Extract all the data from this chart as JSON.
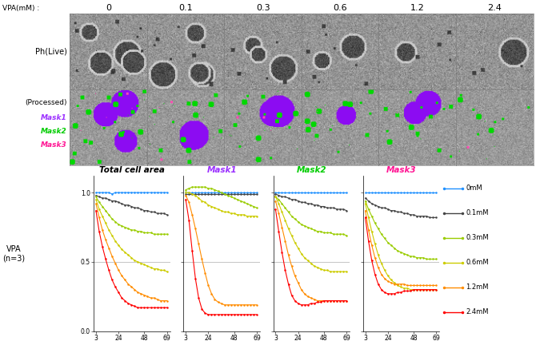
{
  "vpa_labels": [
    "0",
    "0.1",
    "0.3",
    "0.6",
    "1.2",
    "2.4"
  ],
  "graph_titles": [
    "Total cell area",
    "Mask1",
    "Mask2",
    "Mask3"
  ],
  "graph_title_colors": [
    "#000000",
    "#9b30ff",
    "#00cc00",
    "#ff1493"
  ],
  "x_ticks": [
    3,
    24,
    48,
    69
  ],
  "x_values": [
    3,
    6,
    9,
    12,
    15,
    18,
    21,
    24,
    27,
    30,
    33,
    36,
    39,
    42,
    45,
    48,
    51,
    54,
    57,
    60,
    63,
    66,
    69
  ],
  "series_colors": [
    "#1e90ff",
    "#444444",
    "#99cc00",
    "#cccc00",
    "#ff8c00",
    "#ff0000"
  ],
  "series_labels": [
    "0mM",
    "0.1mM",
    "0.3mM",
    "0.6mM",
    "1.2mM",
    "2.4mM"
  ],
  "total_cell_area": [
    [
      1.0,
      1.0,
      1.0,
      1.0,
      1.0,
      0.99,
      1.0,
      1.0,
      1.0,
      1.0,
      1.0,
      1.0,
      1.0,
      1.0,
      1.0,
      1.0,
      1.0,
      1.0,
      1.0,
      1.0,
      1.0,
      1.0,
      1.0
    ],
    [
      0.98,
      0.97,
      0.96,
      0.96,
      0.95,
      0.94,
      0.94,
      0.93,
      0.92,
      0.91,
      0.91,
      0.9,
      0.89,
      0.89,
      0.88,
      0.87,
      0.87,
      0.86,
      0.86,
      0.85,
      0.85,
      0.85,
      0.84
    ],
    [
      0.97,
      0.93,
      0.9,
      0.87,
      0.84,
      0.81,
      0.79,
      0.77,
      0.76,
      0.75,
      0.74,
      0.73,
      0.73,
      0.72,
      0.72,
      0.71,
      0.71,
      0.71,
      0.7,
      0.7,
      0.7,
      0.7,
      0.7
    ],
    [
      0.95,
      0.88,
      0.83,
      0.78,
      0.73,
      0.69,
      0.65,
      0.62,
      0.59,
      0.57,
      0.55,
      0.53,
      0.51,
      0.5,
      0.49,
      0.48,
      0.47,
      0.46,
      0.45,
      0.45,
      0.44,
      0.44,
      0.43
    ],
    [
      0.92,
      0.82,
      0.73,
      0.66,
      0.6,
      0.54,
      0.49,
      0.44,
      0.4,
      0.37,
      0.34,
      0.32,
      0.3,
      0.28,
      0.27,
      0.26,
      0.25,
      0.24,
      0.24,
      0.23,
      0.22,
      0.22,
      0.22
    ],
    [
      0.87,
      0.72,
      0.61,
      0.52,
      0.44,
      0.37,
      0.32,
      0.28,
      0.24,
      0.22,
      0.2,
      0.19,
      0.18,
      0.17,
      0.17,
      0.17,
      0.17,
      0.17,
      0.17,
      0.17,
      0.17,
      0.17,
      0.17
    ]
  ],
  "mask1": [
    [
      1.0,
      1.0,
      1.0,
      1.0,
      1.0,
      1.0,
      1.0,
      1.0,
      1.0,
      1.0,
      1.0,
      1.0,
      1.0,
      1.0,
      1.0,
      1.0,
      1.0,
      1.0,
      1.0,
      1.0,
      1.0,
      1.0,
      1.0
    ],
    [
      0.99,
      0.99,
      0.99,
      0.99,
      0.99,
      0.99,
      0.99,
      0.99,
      0.99,
      0.99,
      0.99,
      0.99,
      0.99,
      0.99,
      0.99,
      0.99,
      0.99,
      0.99,
      0.99,
      0.99,
      0.99,
      0.99,
      0.99
    ],
    [
      1.02,
      1.03,
      1.04,
      1.04,
      1.04,
      1.04,
      1.04,
      1.03,
      1.03,
      1.02,
      1.01,
      1.0,
      0.99,
      0.98,
      0.97,
      0.96,
      0.95,
      0.94,
      0.93,
      0.92,
      0.91,
      0.9,
      0.89
    ],
    [
      1.0,
      1.0,
      0.99,
      0.98,
      0.96,
      0.94,
      0.93,
      0.91,
      0.9,
      0.89,
      0.88,
      0.87,
      0.86,
      0.86,
      0.85,
      0.85,
      0.84,
      0.84,
      0.84,
      0.83,
      0.83,
      0.83,
      0.83
    ],
    [
      0.98,
      0.93,
      0.84,
      0.74,
      0.63,
      0.52,
      0.42,
      0.33,
      0.27,
      0.23,
      0.21,
      0.2,
      0.19,
      0.19,
      0.19,
      0.19,
      0.19,
      0.19,
      0.19,
      0.19,
      0.19,
      0.19,
      0.19
    ],
    [
      0.95,
      0.8,
      0.58,
      0.38,
      0.24,
      0.16,
      0.13,
      0.12,
      0.12,
      0.12,
      0.12,
      0.12,
      0.12,
      0.12,
      0.12,
      0.12,
      0.12,
      0.12,
      0.12,
      0.12,
      0.12,
      0.12,
      0.12
    ]
  ],
  "mask2": [
    [
      1.0,
      1.0,
      1.0,
      1.0,
      1.0,
      1.0,
      1.0,
      1.0,
      1.0,
      1.0,
      1.0,
      1.0,
      1.0,
      1.0,
      1.0,
      1.0,
      1.0,
      1.0,
      1.0,
      1.0,
      1.0,
      1.0,
      1.0
    ],
    [
      0.99,
      0.98,
      0.97,
      0.97,
      0.96,
      0.95,
      0.95,
      0.94,
      0.93,
      0.93,
      0.92,
      0.92,
      0.91,
      0.91,
      0.9,
      0.9,
      0.89,
      0.89,
      0.89,
      0.88,
      0.88,
      0.88,
      0.87
    ],
    [
      0.97,
      0.95,
      0.92,
      0.89,
      0.86,
      0.83,
      0.81,
      0.79,
      0.77,
      0.76,
      0.75,
      0.74,
      0.73,
      0.72,
      0.72,
      0.71,
      0.71,
      0.71,
      0.7,
      0.7,
      0.7,
      0.7,
      0.69
    ],
    [
      0.97,
      0.92,
      0.86,
      0.8,
      0.74,
      0.69,
      0.64,
      0.6,
      0.56,
      0.53,
      0.51,
      0.49,
      0.47,
      0.46,
      0.45,
      0.44,
      0.44,
      0.43,
      0.43,
      0.43,
      0.43,
      0.43,
      0.43
    ],
    [
      0.94,
      0.85,
      0.75,
      0.65,
      0.55,
      0.47,
      0.4,
      0.35,
      0.3,
      0.27,
      0.25,
      0.24,
      0.23,
      0.22,
      0.22,
      0.22,
      0.22,
      0.22,
      0.22,
      0.22,
      0.22,
      0.22,
      0.22
    ],
    [
      0.88,
      0.72,
      0.57,
      0.44,
      0.34,
      0.26,
      0.22,
      0.2,
      0.19,
      0.19,
      0.19,
      0.2,
      0.2,
      0.21,
      0.21,
      0.22,
      0.22,
      0.22,
      0.22,
      0.22,
      0.22,
      0.22,
      0.22
    ]
  ],
  "mask3": [
    [
      1.0,
      1.0,
      1.0,
      1.0,
      1.0,
      1.0,
      1.0,
      1.0,
      1.0,
      1.0,
      1.0,
      1.0,
      1.0,
      1.0,
      1.0,
      1.0,
      1.0,
      1.0,
      1.0,
      1.0,
      1.0,
      1.0,
      1.0
    ],
    [
      0.96,
      0.94,
      0.92,
      0.91,
      0.9,
      0.89,
      0.89,
      0.88,
      0.87,
      0.87,
      0.86,
      0.86,
      0.85,
      0.85,
      0.84,
      0.84,
      0.83,
      0.83,
      0.83,
      0.83,
      0.82,
      0.82,
      0.82
    ],
    [
      0.94,
      0.88,
      0.83,
      0.78,
      0.74,
      0.7,
      0.67,
      0.64,
      0.62,
      0.6,
      0.58,
      0.57,
      0.56,
      0.55,
      0.54,
      0.54,
      0.53,
      0.53,
      0.53,
      0.52,
      0.52,
      0.52,
      0.52
    ],
    [
      0.92,
      0.82,
      0.72,
      0.63,
      0.55,
      0.49,
      0.44,
      0.4,
      0.37,
      0.35,
      0.33,
      0.32,
      0.31,
      0.31,
      0.3,
      0.3,
      0.3,
      0.3,
      0.3,
      0.3,
      0.3,
      0.3,
      0.3
    ],
    [
      0.87,
      0.73,
      0.62,
      0.53,
      0.46,
      0.41,
      0.38,
      0.36,
      0.35,
      0.34,
      0.34,
      0.34,
      0.34,
      0.33,
      0.33,
      0.33,
      0.33,
      0.33,
      0.33,
      0.33,
      0.33,
      0.33,
      0.33
    ],
    [
      0.82,
      0.65,
      0.51,
      0.41,
      0.34,
      0.3,
      0.28,
      0.27,
      0.27,
      0.27,
      0.28,
      0.28,
      0.29,
      0.29,
      0.29,
      0.3,
      0.3,
      0.3,
      0.3,
      0.3,
      0.3,
      0.3,
      0.3
    ]
  ],
  "bg_color": "#ffffff",
  "mask1_color": "#9b30ff",
  "mask2_color": "#00cc00",
  "mask3_color": "#ff1493"
}
